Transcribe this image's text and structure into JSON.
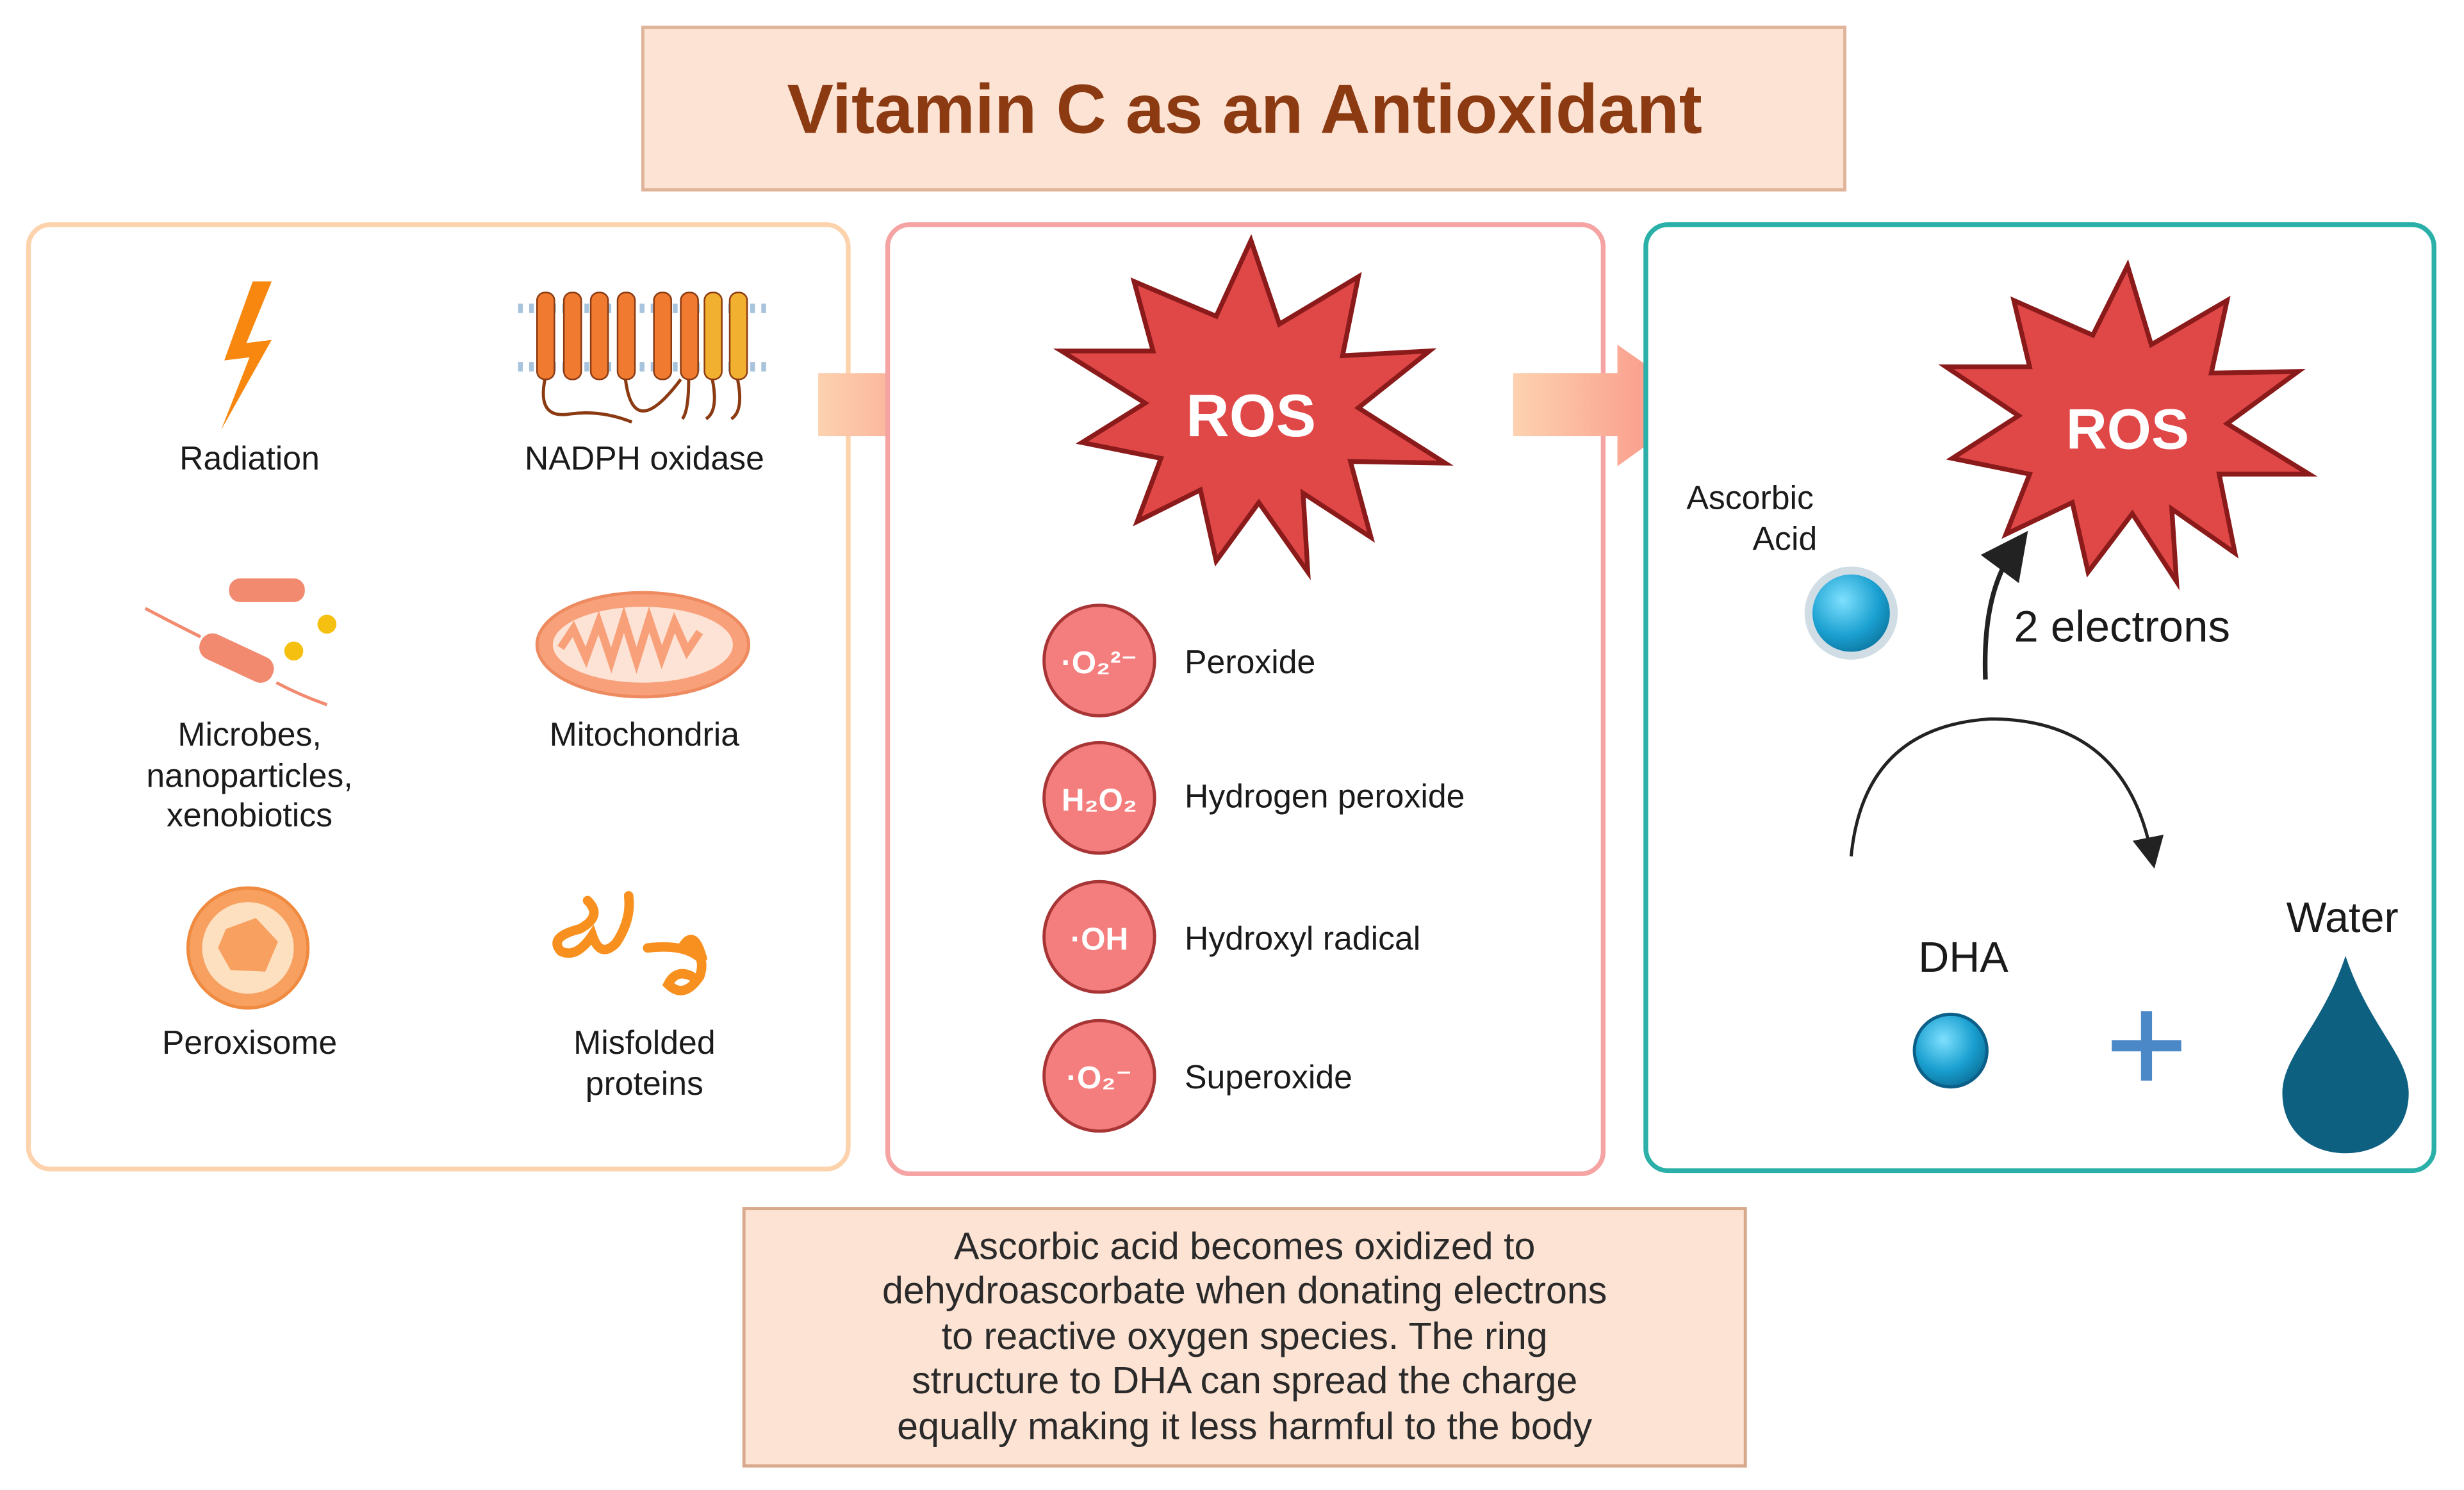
{
  "title": "Vitamin C as an Antioxidant",
  "sources": {
    "radiation": "Radiation",
    "nadph": "NADPH oxidase",
    "microbes": [
      "Microbes,",
      "nanoparticles,",
      "xenobiotics"
    ],
    "mitochondria": "Mitochondria",
    "peroxisome": "Peroxisome",
    "misfolded": [
      "Misfolded",
      "proteins"
    ]
  },
  "ros": {
    "label": "ROS",
    "species": [
      {
        "formula": "·O₂²⁻",
        "name": "Peroxide"
      },
      {
        "formula": "H₂O₂",
        "name": "Hydrogen peroxide"
      },
      {
        "formula": "·OH",
        "name": "Hydroxyl radical"
      },
      {
        "formula": "·O₂⁻",
        "name": "Superoxide"
      }
    ]
  },
  "reaction": {
    "ros_label": "ROS",
    "ascorbic": [
      "Ascorbic",
      "Acid"
    ],
    "electrons": "2 electrons",
    "dha": "DHA",
    "water": "Water"
  },
  "caption": [
    "Ascorbic acid becomes oxidized to",
    "dehydroascorbate when donating electrons",
    "to reactive oxygen species. The ring",
    "structure to DHA can spread the charge",
    "equally making it less harmful to the body"
  ],
  "colors": {
    "title_text": "#8b3a12",
    "box_fill": "#fce3d3",
    "ros_red": "#e04848",
    "teal": "#2ab0a8",
    "water": "#0d6080",
    "ball": "#1aa0d0"
  }
}
